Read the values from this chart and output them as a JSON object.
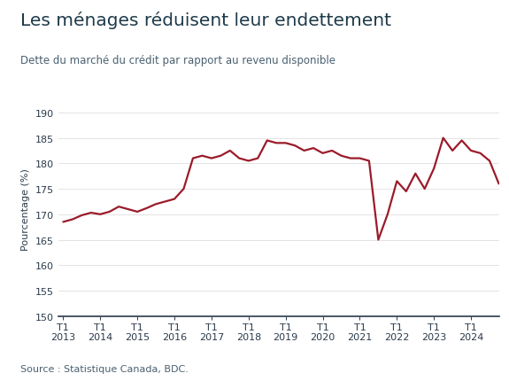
{
  "title": "Les ménages réduisent leur endettement",
  "subtitle": "Dette du marché du crédit par rapport au revenu disponible",
  "source": "Source : Statistique Canada, BDC.",
  "ylabel": "Pourcentage (%)",
  "line_color": "#9b1b2a",
  "background_color": "#ffffff",
  "title_color": "#1e3a4a",
  "subtitle_color": "#4a6070",
  "axis_color": "#2a3a4a",
  "tick_color": "#2a3a4a",
  "grid_color": "#d8d8d8",
  "ylim": [
    150,
    192
  ],
  "yticks": [
    150,
    155,
    160,
    165,
    170,
    175,
    180,
    185,
    190
  ],
  "x_labels": [
    "T1\n2013",
    "T1\n2014",
    "T1\n2015",
    "T1\n2016",
    "T1\n2017",
    "T1\n2018",
    "T1\n2019",
    "T1\n2020",
    "T1\n2021",
    "T1\n2022",
    "T1\n2023",
    "T1\n2024"
  ],
  "x_positions": [
    0,
    4,
    8,
    12,
    16,
    20,
    24,
    28,
    32,
    36,
    40,
    44
  ],
  "data": [
    168.5,
    169.0,
    169.8,
    170.3,
    170.0,
    170.5,
    171.5,
    171.0,
    170.5,
    171.2,
    172.0,
    172.5,
    173.0,
    175.0,
    181.0,
    181.5,
    181.0,
    181.5,
    182.5,
    181.0,
    180.5,
    181.0,
    184.5,
    184.0,
    184.0,
    183.5,
    182.5,
    183.0,
    182.0,
    182.5,
    181.5,
    181.0,
    181.0,
    180.5,
    165.0,
    170.0,
    176.5,
    174.5,
    178.0,
    175.0,
    179.0,
    185.0,
    182.5,
    184.5,
    182.5,
    182.0,
    180.5,
    176.0
  ]
}
